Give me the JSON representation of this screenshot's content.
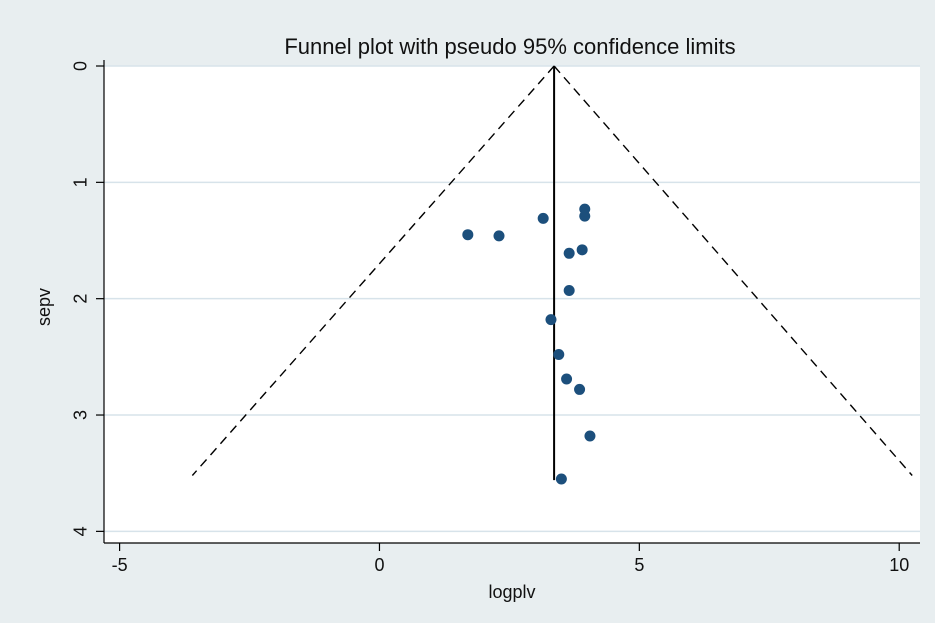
{
  "chart_data": {
    "type": "scatter",
    "title": "Funnel plot with pseudo 95% confidence limits",
    "xlabel": "logplv",
    "ylabel": "sepv",
    "xlim": [
      -5.3,
      10.4
    ],
    "ylim": [
      0,
      4.1
    ],
    "y_reversed": true,
    "grid": true,
    "legend": "none",
    "x_ticks": [
      -5,
      0,
      5,
      10
    ],
    "y_ticks": [
      0,
      1,
      2,
      3,
      4
    ],
    "x_tick_labels": [
      "-5",
      "0",
      "5",
      "10"
    ],
    "y_tick_labels": [
      "0",
      "1",
      "2",
      "3",
      "4"
    ],
    "pooled_estimate": 3.36,
    "pooled_line_yrange": [
      0,
      3.56
    ],
    "confidence_limits": {
      "apex": [
        3.36,
        0
      ],
      "lower_end": [
        -3.6,
        3.52
      ],
      "upper_end": [
        10.25,
        3.52
      ]
    },
    "points": [
      {
        "x": 1.7,
        "y": 1.45
      },
      {
        "x": 2.3,
        "y": 1.46
      },
      {
        "x": 3.15,
        "y": 1.31
      },
      {
        "x": 3.95,
        "y": 1.23
      },
      {
        "x": 3.95,
        "y": 1.29
      },
      {
        "x": 3.9,
        "y": 1.58
      },
      {
        "x": 3.65,
        "y": 1.61
      },
      {
        "x": 3.65,
        "y": 1.93
      },
      {
        "x": 3.3,
        "y": 2.18
      },
      {
        "x": 3.45,
        "y": 2.48
      },
      {
        "x": 3.6,
        "y": 2.69
      },
      {
        "x": 3.85,
        "y": 2.78
      },
      {
        "x": 4.05,
        "y": 3.18
      },
      {
        "x": 3.5,
        "y": 3.55
      }
    ],
    "colors": {
      "point": "#1c4f7c",
      "grid": "#d7e3ea",
      "line": "#000000",
      "plot_bg": "#ffffff",
      "page_bg": "#e8eef0"
    }
  }
}
